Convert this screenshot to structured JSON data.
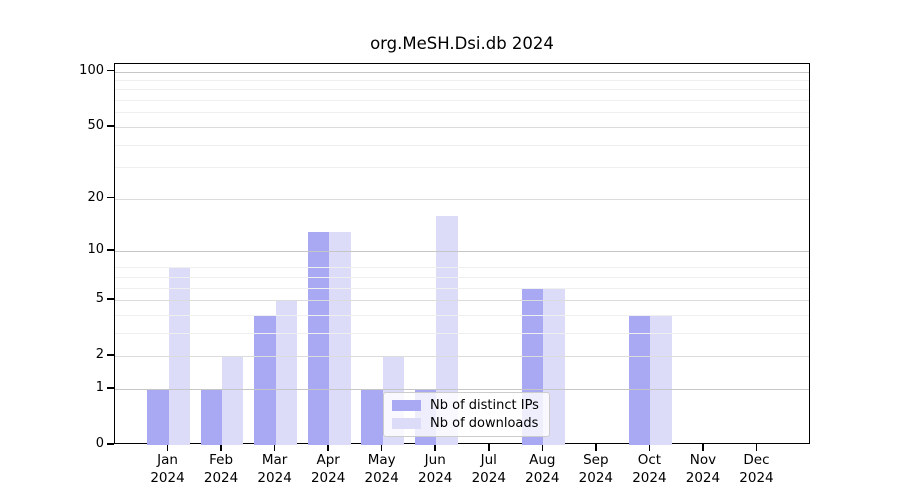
{
  "chart_data": {
    "type": "bar",
    "title": "org.MeSH.Dsi.db 2024",
    "categories": [
      "Jan 2024",
      "Feb 2024",
      "Mar 2024",
      "Apr 2024",
      "May 2024",
      "Jun 2024",
      "Jul 2024",
      "Aug 2024",
      "Sep 2024",
      "Oct 2024",
      "Nov 2024",
      "Dec 2024"
    ],
    "series": [
      {
        "name": "Nb of distinct IPs",
        "color": "#a9a9f3",
        "values": [
          1,
          1,
          4,
          13,
          1,
          1,
          0,
          6,
          0,
          4,
          0,
          0
        ]
      },
      {
        "name": "Nb of downloads",
        "color": "#dcdcf9",
        "values": [
          8,
          2,
          5,
          13,
          2,
          16,
          0,
          6,
          0,
          4,
          0,
          0
        ]
      }
    ],
    "xlabel": "",
    "ylabel": "",
    "yscale": "log1p",
    "y_ticks": [
      0,
      1,
      2,
      5,
      10,
      20,
      50,
      100
    ],
    "y_major_decades": [
      1,
      10,
      100
    ],
    "y_minor_ticks": [
      3,
      4,
      6,
      7,
      8,
      30,
      40,
      60,
      70,
      80,
      90
    ],
    "ylim": [
      0,
      110
    ],
    "grid": true,
    "grid_above_bars": true,
    "legend_position": "lower center",
    "background_color": "#ffffff",
    "axis_color": "#000000"
  }
}
